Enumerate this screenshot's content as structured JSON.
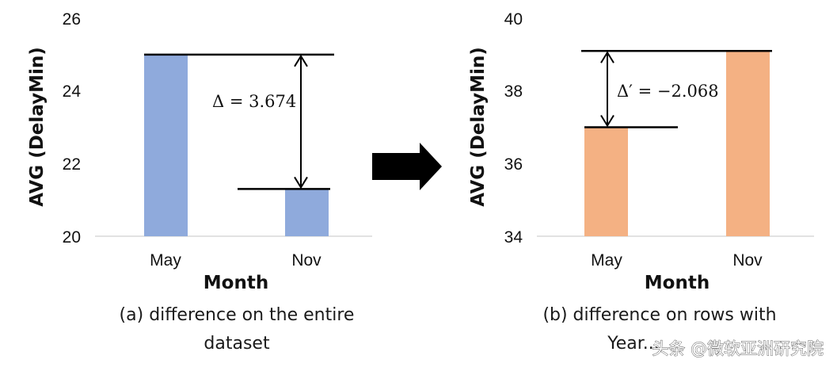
{
  "chart_data": [
    {
      "type": "bar",
      "categories": [
        "May",
        "Nov"
      ],
      "values": [
        25.0,
        21.3
      ],
      "xlabel": "Month",
      "ylabel": "AVG (DelayMin)",
      "ylim": [
        20,
        26
      ],
      "yticks": [
        "20",
        "22",
        "24",
        "26"
      ],
      "annotation": "Δ = 3.674",
      "caption_lines": [
        "(a) difference on the entire",
        "dataset"
      ],
      "color": "#8faadc"
    },
    {
      "type": "bar",
      "categories": [
        "May",
        "Nov"
      ],
      "values": [
        37.0,
        39.1
      ],
      "xlabel": "Month",
      "ylabel": "AVG (DelayMin)",
      "ylim": [
        34,
        40
      ],
      "yticks": [
        "34",
        "36",
        "38",
        "40"
      ],
      "annotation": "Δ′ = −2.068",
      "caption_lines": [
        "(b) difference on rows with",
        "Year..."
      ],
      "color": "#f4b183"
    }
  ],
  "watermark": "头条 @微软亚洲研究院",
  "colors": {
    "axis": "#d9d9d9",
    "ink": "#111111",
    "arrow": "#000000"
  }
}
